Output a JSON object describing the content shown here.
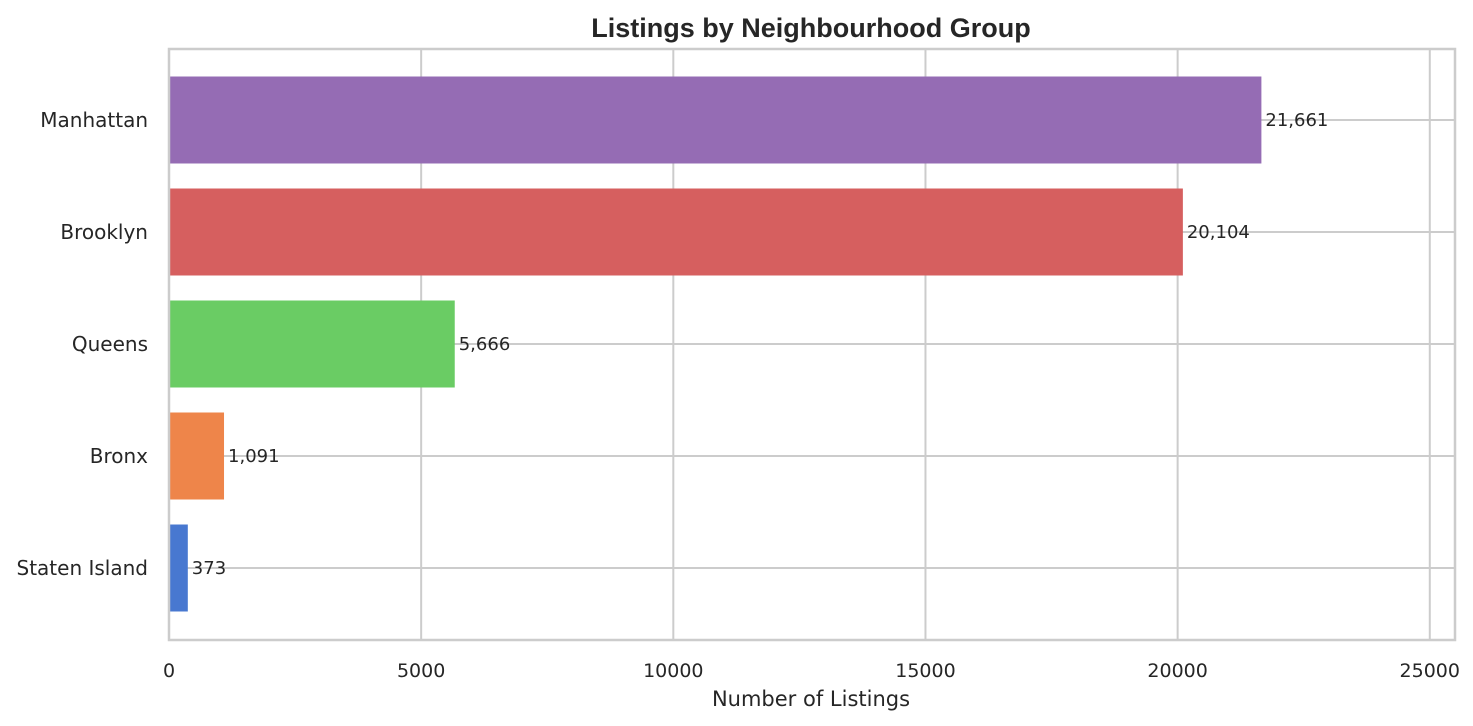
{
  "chart_data": {
    "type": "bar",
    "orientation": "horizontal",
    "title": "Listings by Neighbourhood Group",
    "xlabel": "Number of Listings",
    "ylabel": "",
    "categories": [
      "Manhattan",
      "Brooklyn",
      "Queens",
      "Bronx",
      "Staten Island"
    ],
    "values": [
      21661,
      20104,
      5666,
      1091,
      373
    ],
    "value_labels": [
      "21,661",
      "20,104",
      "5,666",
      "1,091",
      "373"
    ],
    "bar_colors": [
      "#956cb4",
      "#d65f5f",
      "#6acc64",
      "#ee854a",
      "#4878d0"
    ],
    "xlim": [
      0,
      25500
    ],
    "xticks": [
      0,
      5000,
      10000,
      15000,
      20000,
      25000
    ],
    "xtick_labels": [
      "0",
      "5000",
      "10000",
      "15000",
      "20000",
      "25000"
    ],
    "grid": true
  }
}
